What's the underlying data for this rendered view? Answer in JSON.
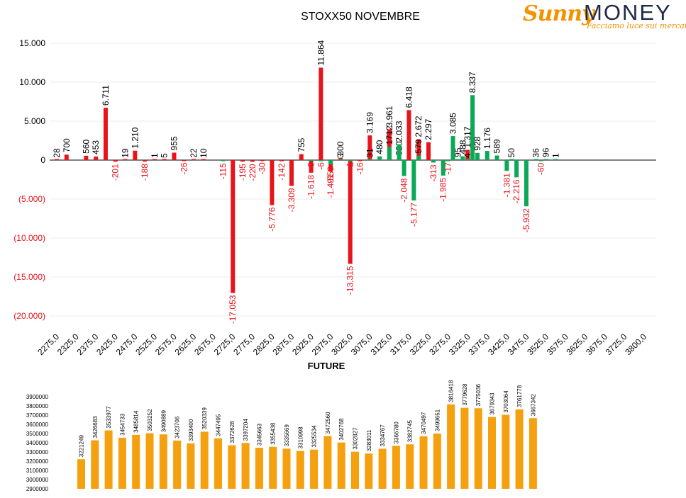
{
  "brand": {
    "name_part1": "Sunny",
    "name_part2": "MONEY",
    "tagline": "Facciamo luce sui mercati"
  },
  "colors": {
    "call": "#e8141b",
    "put": "#0ca857",
    "future": "#f5a00e",
    "negative_label": "#e8141b",
    "text": "#000000"
  },
  "chart_data": [
    {
      "type": "bar",
      "title": "STOXX50 NOVEMBRE",
      "ylim": [
        -20000,
        15000
      ],
      "y_ticks": [
        {
          "value": 15000,
          "label": "15.000"
        },
        {
          "value": 10000,
          "label": "10.000"
        },
        {
          "value": 5000,
          "label": "5.000"
        },
        {
          "value": 0,
          "label": "0"
        },
        {
          "value": -5000,
          "label": "(5.000)"
        },
        {
          "value": -10000,
          "label": "(10.000)"
        },
        {
          "value": -15000,
          "label": "(15.000)"
        },
        {
          "value": -20000,
          "label": "(20.000)"
        }
      ],
      "x_tick_labels": [
        "2275,0",
        "2325,0",
        "2375,0",
        "2425,0",
        "2475,0",
        "2525,0",
        "2575,0",
        "2625,0",
        "2675,0",
        "2725,0",
        "2775,0",
        "2825,0",
        "2875,0",
        "2925,0",
        "2975,0",
        "3025,0",
        "3075,0",
        "3125,0",
        "3175,0",
        "3225,0",
        "3275,0",
        "3325,0",
        "3375,0",
        "3425,0",
        "3475,0",
        "3525,0",
        "3575,0",
        "3625,0",
        "3675,0",
        "3725,0",
        "3800,0"
      ],
      "strike_start": 2275,
      "strike_step": 25,
      "grid": true,
      "series": [
        {
          "color": "#e8141b",
          "points": [
            {
              "x": 2275,
              "y": 28,
              "label": "28"
            },
            {
              "x": 2300,
              "y": 700,
              "label": "700"
            },
            {
              "x": 2350,
              "y": 560,
              "label": "560"
            },
            {
              "x": 2375,
              "y": 453,
              "label": "453"
            },
            {
              "x": 2400,
              "y": 6711,
              "label": "6.711"
            },
            {
              "x": 2425,
              "y": -201,
              "label": "-201"
            },
            {
              "x": 2450,
              "y": 19,
              "label": "19"
            },
            {
              "x": 2475,
              "y": 1210,
              "label": "1.210"
            },
            {
              "x": 2500,
              "y": -188,
              "label": "-188"
            },
            {
              "x": 2525,
              "y": 1,
              "label": "1"
            },
            {
              "x": 2550,
              "y": 5,
              "label": "5"
            },
            {
              "x": 2575,
              "y": 955,
              "label": "955"
            },
            {
              "x": 2600,
              "y": -26,
              "label": "-26"
            },
            {
              "x": 2625,
              "y": 22,
              "label": "22"
            },
            {
              "x": 2650,
              "y": 10,
              "label": "10"
            },
            {
              "x": 2700,
              "y": -115,
              "label": "-115"
            },
            {
              "x": 2725,
              "y": -17053,
              "label": "-17.053"
            },
            {
              "x": 2750,
              "y": -195,
              "label": "-195"
            },
            {
              "x": 2775,
              "y": -220,
              "label": "-220"
            },
            {
              "x": 2800,
              "y": -30,
              "label": "-30"
            },
            {
              "x": 2825,
              "y": -5776,
              "label": "-5.776"
            },
            {
              "x": 2850,
              "y": -142,
              "label": "-142"
            },
            {
              "x": 2875,
              "y": -3309,
              "label": "-3.309"
            },
            {
              "x": 2900,
              "y": 755,
              "label": "755"
            },
            {
              "x": 2925,
              "y": -1618,
              "label": "-1.618"
            },
            {
              "x": 2950,
              "y": 11864,
              "label": "11.864"
            },
            {
              "x": 2975,
              "y": -1491,
              "label": "-1.491"
            },
            {
              "x": 3000,
              "y": 300,
              "label": "300"
            },
            {
              "x": 3025,
              "y": -13315,
              "label": "-13.315"
            },
            {
              "x": 3050,
              "y": -16,
              "label": "-16"
            },
            {
              "x": 3075,
              "y": 3169,
              "label": "3.169"
            },
            {
              "x": 3125,
              "y": 3961,
              "label": "3.961"
            },
            {
              "x": 3150,
              "y": 320,
              "label": "320"
            },
            {
              "x": 3175,
              "y": 6418,
              "label": "6.418"
            },
            {
              "x": 3200,
              "y": 2672,
              "label": "2.672"
            },
            {
              "x": 3225,
              "y": 2297,
              "label": "2.297"
            },
            {
              "x": 3325,
              "y": 1317,
              "label": "1.317"
            }
          ]
        },
        {
          "color": "#0ca857",
          "points": [
            {
              "x": 2700,
              "y": -9,
              "label": ""
            },
            {
              "x": 2925,
              "y": -9,
              "label": "-9"
            },
            {
              "x": 2950,
              "y": -6,
              "label": "-6"
            },
            {
              "x": 2975,
              "y": -553,
              "label": "-553"
            },
            {
              "x": 3000,
              "y": 3,
              "label": "3"
            },
            {
              "x": 3025,
              "y": -1,
              "label": "-1"
            },
            {
              "x": 3075,
              "y": 31,
              "label": "31"
            },
            {
              "x": 3100,
              "y": 480,
              "label": "480"
            },
            {
              "x": 3125,
              "y": 1712,
              "label": "1712"
            },
            {
              "x": 3150,
              "y": 2033,
              "label": "2.033"
            },
            {
              "x": 3162.5,
              "y": -2048,
              "label": "-2.048"
            },
            {
              "x": 3187.5,
              "y": -5177,
              "label": "-5.177"
            },
            {
              "x": 3200,
              "y": 579,
              "label": "579"
            },
            {
              "x": 3237.5,
              "y": -313,
              "label": "-313"
            },
            {
              "x": 3262.5,
              "y": -1985,
              "label": "-1.985"
            },
            {
              "x": 3275,
              "y": -17,
              "label": "-17"
            },
            {
              "x": 3287.5,
              "y": 3085,
              "label": "3.085"
            },
            {
              "x": 3300,
              "y": 95,
              "label": "95"
            },
            {
              "x": 3312.5,
              "y": 488,
              "label": "488"
            },
            {
              "x": 3325,
              "y": 4,
              "label": "4"
            },
            {
              "x": 3337.5,
              "y": 8337,
              "label": "8.337"
            },
            {
              "x": 3350,
              "y": 928,
              "label": "928"
            },
            {
              "x": 3375,
              "y": 1176,
              "label": "1.176"
            },
            {
              "x": 3400,
              "y": 589,
              "label": "589"
            },
            {
              "x": 3425,
              "y": -1381,
              "label": "-1.381"
            },
            {
              "x": 3437.5,
              "y": 50,
              "label": "50"
            },
            {
              "x": 3450,
              "y": -2216,
              "label": "-2.216"
            },
            {
              "x": 3475,
              "y": -5932,
              "label": "-5.932"
            },
            {
              "x": 3500,
              "y": 36,
              "label": "36"
            },
            {
              "x": 3512.5,
              "y": -60,
              "label": "-60"
            },
            {
              "x": 3525,
              "y": 96,
              "label": "96"
            },
            {
              "x": 3550,
              "y": 1,
              "label": "1"
            }
          ]
        }
      ]
    },
    {
      "type": "bar",
      "title": "FUTURE",
      "ylim": [
        2900000,
        3900000
      ],
      "y_ticks": [
        "3900000",
        "3800000",
        "3700000",
        "3600000",
        "3500000",
        "3400000",
        "3300000",
        "3200000",
        "3100000",
        "3000000",
        "2900000"
      ],
      "values": [
        3221249,
        3426683,
        3533977,
        3454733,
        3485814,
        3503252,
        3490889,
        3423706,
        3393400,
        3520339,
        3447495,
        3372628,
        3397204,
        3345663,
        3355438,
        3335669,
        3310998,
        3325534,
        3472560,
        3402768,
        3302827,
        3283011,
        3334767,
        3366780,
        3382745,
        3470497,
        3499651,
        3816418,
        3779628,
        3775036,
        3679343,
        3703064,
        3761778,
        3667342
      ],
      "color": "#f5a00e"
    }
  ]
}
